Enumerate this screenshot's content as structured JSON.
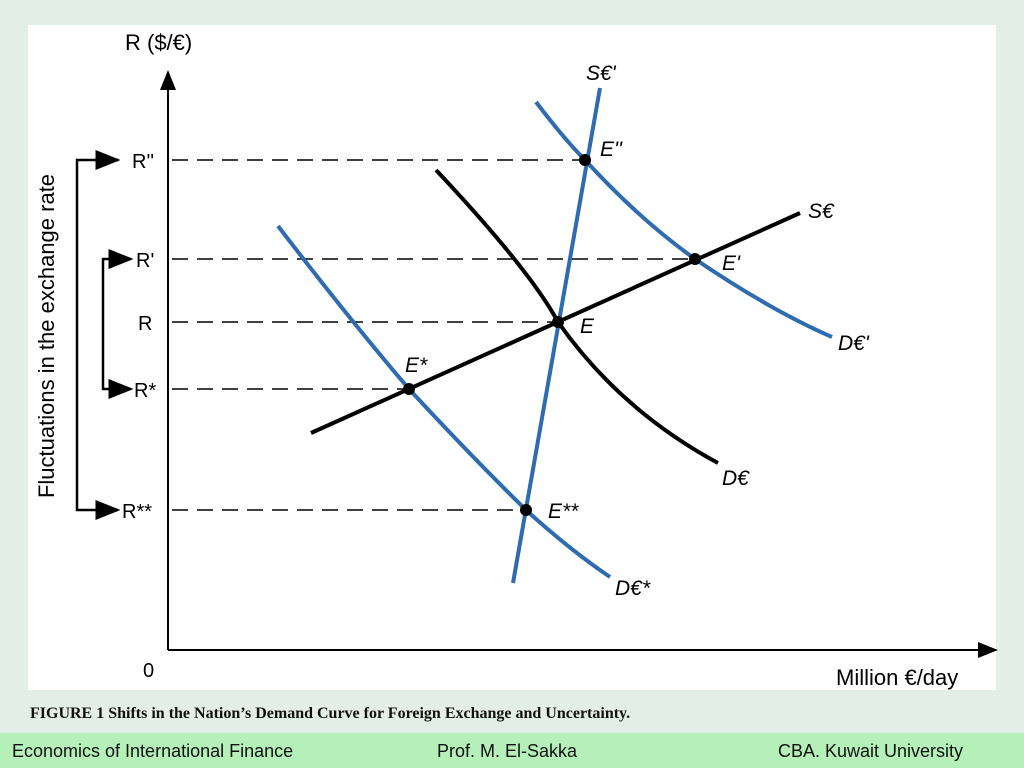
{
  "diagram": {
    "y_axis_label": "R ($/€)",
    "x_axis_label": "Million €/day",
    "origin": "0",
    "side_label": "Fluctuations in the exchange rate",
    "rate_levels": [
      "R''",
      "R'",
      "R",
      "R*",
      "R**"
    ],
    "curves": {
      "supply": "S€",
      "supply_inelastic": "S€'",
      "demand": "D€",
      "demand_high": "D€'",
      "demand_low": "D€*"
    },
    "equilibria": [
      "E''",
      "E'",
      "E",
      "E*",
      "E**"
    ],
    "colors": {
      "blue_curves": "#2e6bb0",
      "black_curves": "#000000"
    }
  },
  "caption": "FIGURE 1 Shifts in the Nation’s Demand Curve for Foreign Exchange and Uncertainty.",
  "footer": {
    "left": "Economics of International Finance",
    "center": "Prof. M. El-Sakka",
    "right": "CBA. Kuwait University"
  }
}
